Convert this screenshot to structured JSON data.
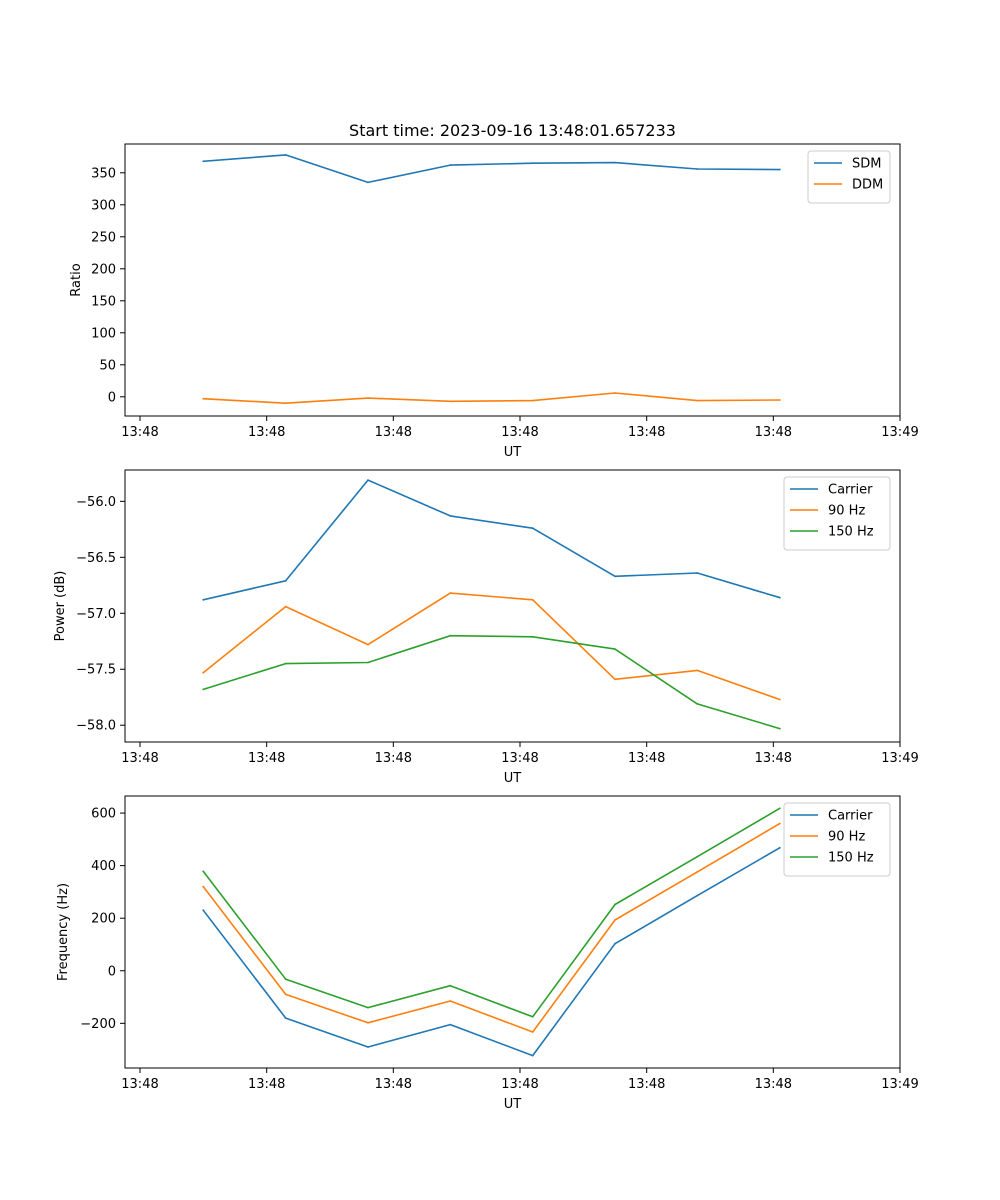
{
  "chart_data": [
    {
      "type": "line",
      "title": "Start time: 2023-09-16 13:48:01.657233",
      "xlabel": "UT",
      "ylabel": "Ratio",
      "xlim": [
        0,
        1
      ],
      "ylim": [
        -30,
        395
      ],
      "xticks": [
        0,
        0.1667,
        0.3333,
        0.5,
        0.6667,
        0.8333,
        1
      ],
      "xtick_labels": [
        "13:48",
        "13:48",
        "13:48",
        "13:48",
        "13:48",
        "13:48",
        "13:49"
      ],
      "yticks": [
        0,
        50,
        100,
        150,
        200,
        250,
        300,
        350
      ],
      "ytick_labels": [
        "0",
        "50",
        "100",
        "150",
        "200",
        "250",
        "300",
        "350"
      ],
      "x": [
        0.0833,
        0.1917,
        0.3,
        0.4083,
        0.5167,
        0.625,
        0.7333,
        0.8417
      ],
      "series": [
        {
          "name": "SDM",
          "color": "#1f77b4",
          "values": [
            368,
            378,
            335,
            362,
            365,
            366,
            356,
            355
          ]
        },
        {
          "name": "DDM",
          "color": "#ff7f0e",
          "values": [
            -3,
            -10,
            -2,
            -7,
            -6,
            6,
            -6,
            -5
          ]
        }
      ],
      "legend": "top-right"
    },
    {
      "type": "line",
      "xlabel": "UT",
      "ylabel": "Power (dB)",
      "xlim": [
        0,
        1
      ],
      "ylim": [
        -58.15,
        -55.72
      ],
      "xticks": [
        0,
        0.1667,
        0.3333,
        0.5,
        0.6667,
        0.8333,
        1
      ],
      "xtick_labels": [
        "13:48",
        "13:48",
        "13:48",
        "13:48",
        "13:48",
        "13:48",
        "13:49"
      ],
      "yticks": [
        -58.0,
        -57.5,
        -57.0,
        -56.5,
        -56.0
      ],
      "ytick_labels": [
        "−58.0",
        "−57.5",
        "−57.0",
        "−56.5",
        "−56.0"
      ],
      "x": [
        0.0833,
        0.1917,
        0.3,
        0.4083,
        0.5167,
        0.625,
        0.7333,
        0.8417
      ],
      "series": [
        {
          "name": "Carrier",
          "color": "#1f77b4",
          "values": [
            -56.88,
            -56.71,
            -55.81,
            -56.13,
            -56.24,
            -56.67,
            -56.64,
            -56.86
          ]
        },
        {
          "name": "90 Hz",
          "color": "#ff7f0e",
          "values": [
            -57.53,
            -56.94,
            -57.28,
            -56.82,
            -56.88,
            -57.59,
            -57.51,
            -57.77
          ]
        },
        {
          "name": "150 Hz",
          "color": "#2ca02c",
          "values": [
            -57.68,
            -57.45,
            -57.44,
            -57.2,
            -57.21,
            -57.32,
            -57.81,
            -58.03
          ]
        }
      ],
      "legend": "top-right"
    },
    {
      "type": "line",
      "xlabel": "UT",
      "ylabel": "Frequency (Hz)",
      "xlim": [
        0,
        1
      ],
      "ylim": [
        -370,
        665
      ],
      "xticks": [
        0,
        0.1667,
        0.3333,
        0.5,
        0.6667,
        0.8333,
        1
      ],
      "xtick_labels": [
        "13:48",
        "13:48",
        "13:48",
        "13:48",
        "13:48",
        "13:48",
        "13:49"
      ],
      "yticks": [
        -200,
        0,
        200,
        400,
        600
      ],
      "ytick_labels": [
        "−200",
        "0",
        "200",
        "400",
        "600"
      ],
      "x": [
        0.0833,
        0.1917,
        0.3,
        0.4083,
        0.5167,
        0.625,
        0.7333,
        0.8417
      ],
      "series": [
        {
          "name": "Carrier",
          "color": "#1f77b4",
          "values": [
            230,
            -180,
            -290,
            -205,
            -323,
            103,
            286,
            468
          ]
        },
        {
          "name": "90 Hz",
          "color": "#ff7f0e",
          "values": [
            320,
            -90,
            -198,
            -115,
            -233,
            193,
            376,
            560
          ]
        },
        {
          "name": "150 Hz",
          "color": "#2ca02c",
          "values": [
            378,
            -32,
            -140,
            -57,
            -175,
            252,
            434,
            618
          ]
        }
      ],
      "legend": "top-right"
    }
  ]
}
